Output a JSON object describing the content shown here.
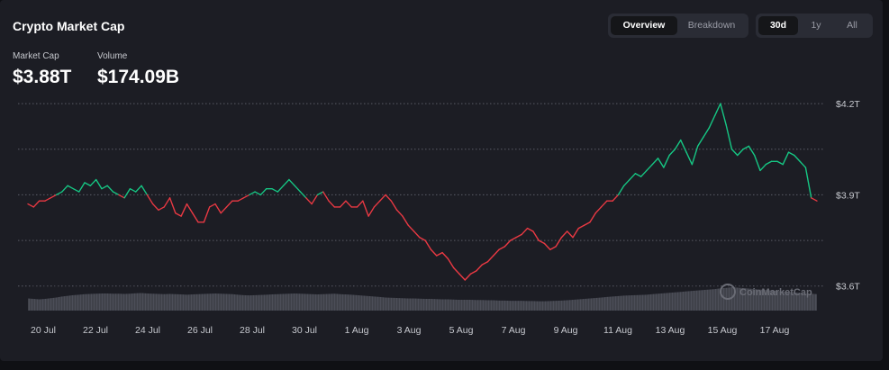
{
  "header": {
    "title": "Crypto Market Cap",
    "stats": [
      {
        "label": "Market Cap",
        "value": "$3.88T"
      },
      {
        "label": "Volume",
        "value": "$174.09B"
      }
    ]
  },
  "view_toggle": {
    "options": [
      "Overview",
      "Breakdown"
    ],
    "selected": "Overview"
  },
  "range_toggle": {
    "options": [
      "30d",
      "1y",
      "All"
    ],
    "selected": "30d"
  },
  "watermark": "CoinMarketCap",
  "colors": {
    "up": "#16c784",
    "down": "#ea3943",
    "grid": "#5a5c66",
    "volume": "#555762"
  },
  "chart_data": {
    "type": "line",
    "y_ticks": [
      {
        "value": 4.2,
        "label": "$4.2T"
      },
      {
        "value": 3.9,
        "label": "$3.9T"
      },
      {
        "value": 3.6,
        "label": "$3.6T"
      }
    ],
    "y_unit": "trillion USD",
    "ylim": [
      3.54,
      4.23
    ],
    "baseline": 3.9,
    "x_ticks": [
      "20 Jul",
      "22 Jul",
      "24 Jul",
      "26 Jul",
      "28 Jul",
      "30 Jul",
      "1 Aug",
      "3 Aug",
      "5 Aug",
      "7 Aug",
      "9 Aug",
      "11 Aug",
      "13 Aug",
      "15 Aug",
      "17 Aug"
    ],
    "series": [
      {
        "values": [
          3.87,
          3.86,
          3.88,
          3.88,
          3.89,
          3.9,
          3.91,
          3.93,
          3.92,
          3.91,
          3.94,
          3.93,
          3.95,
          3.92,
          3.93,
          3.91,
          3.9,
          3.89,
          3.92,
          3.91,
          3.93,
          3.9,
          3.87,
          3.85,
          3.86,
          3.89,
          3.84,
          3.83,
          3.87,
          3.84,
          3.81,
          3.81,
          3.86,
          3.87,
          3.84,
          3.86,
          3.88,
          3.88,
          3.89,
          3.9,
          3.91,
          3.9,
          3.92,
          3.92,
          3.91,
          3.93,
          3.95,
          3.93,
          3.91,
          3.89,
          3.87,
          3.9,
          3.91,
          3.88,
          3.86,
          3.86,
          3.88,
          3.86,
          3.86,
          3.88,
          3.83,
          3.86,
          3.88,
          3.9,
          3.88,
          3.85,
          3.83,
          3.8,
          3.78,
          3.76,
          3.75,
          3.72,
          3.7,
          3.71,
          3.69,
          3.66,
          3.64,
          3.62,
          3.64,
          3.65,
          3.67,
          3.68,
          3.7,
          3.72,
          3.73,
          3.75,
          3.76,
          3.77,
          3.79,
          3.78,
          3.75,
          3.74,
          3.72,
          3.73,
          3.76,
          3.78,
          3.76,
          3.79,
          3.8,
          3.81,
          3.84,
          3.86,
          3.88,
          3.88,
          3.9,
          3.93,
          3.95,
          3.97,
          3.96,
          3.98,
          4.0,
          4.02,
          3.99,
          4.03,
          4.05,
          4.08,
          4.04,
          4.0,
          4.06,
          4.09,
          4.12,
          4.16,
          4.2,
          4.13,
          4.05,
          4.03,
          4.05,
          4.06,
          4.03,
          3.98,
          4.0,
          4.01,
          4.01,
          4.0,
          4.04,
          4.03,
          4.01,
          3.99,
          3.89,
          3.88
        ]
      }
    ],
    "volume": [
      0.52,
      0.5,
      0.48,
      0.5,
      0.53,
      0.56,
      0.6,
      0.63,
      0.66,
      0.68,
      0.7,
      0.71,
      0.72,
      0.73,
      0.73,
      0.72,
      0.72,
      0.71,
      0.72,
      0.74,
      0.75,
      0.73,
      0.72,
      0.71,
      0.7,
      0.71,
      0.7,
      0.69,
      0.68,
      0.69,
      0.7,
      0.71,
      0.72,
      0.73,
      0.72,
      0.71,
      0.7,
      0.68,
      0.66,
      0.65,
      0.66,
      0.67,
      0.68,
      0.69,
      0.7,
      0.71,
      0.72,
      0.73,
      0.72,
      0.71,
      0.7,
      0.69,
      0.7,
      0.71,
      0.72,
      0.7,
      0.69,
      0.68,
      0.66,
      0.64,
      0.62,
      0.6,
      0.58,
      0.56,
      0.55,
      0.54,
      0.53,
      0.52,
      0.52,
      0.51,
      0.5,
      0.5,
      0.49,
      0.48,
      0.48,
      0.47,
      0.46,
      0.46,
      0.46,
      0.45,
      0.45,
      0.44,
      0.44,
      0.43,
      0.43,
      0.42,
      0.42,
      0.42,
      0.41,
      0.41,
      0.4,
      0.4,
      0.41,
      0.42,
      0.43,
      0.44,
      0.46,
      0.48,
      0.5,
      0.52,
      0.54,
      0.56,
      0.58,
      0.6,
      0.62,
      0.64,
      0.65,
      0.66,
      0.67,
      0.68,
      0.7,
      0.72,
      0.74,
      0.76,
      0.78,
      0.8,
      0.82,
      0.84,
      0.86,
      0.88,
      0.9,
      0.92,
      0.95,
      0.97,
      1.0,
      0.98,
      0.96,
      0.94,
      0.92,
      0.9,
      0.88,
      0.86,
      0.84,
      0.82,
      0.8,
      0.78,
      0.76,
      0.74,
      0.72,
      0.7
    ]
  }
}
